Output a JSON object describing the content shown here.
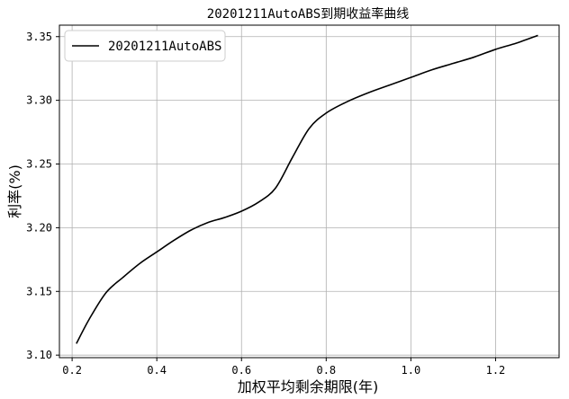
{
  "chart_data": {
    "type": "line",
    "title": "20201211AutoABS到期收益率曲线",
    "xlabel": "加权平均剩余期限(年)",
    "ylabel": "利率(%)",
    "xlim": [
      0.17,
      1.35
    ],
    "ylim": [
      3.098,
      3.359
    ],
    "x_ticks": [
      0.2,
      0.4,
      0.6,
      0.8,
      1.0,
      1.2
    ],
    "x_tick_labels": [
      "0.2",
      "0.4",
      "0.6",
      "0.8",
      "1.0",
      "1.2"
    ],
    "y_ticks": [
      3.1,
      3.15,
      3.2,
      3.25,
      3.3,
      3.35
    ],
    "y_tick_labels": [
      "3.10",
      "3.15",
      "3.20",
      "3.25",
      "3.30",
      "3.35"
    ],
    "grid": true,
    "legend_position": "top-left",
    "series": [
      {
        "name": "20201211AutoABS",
        "color": "#000000",
        "x": [
          0.21,
          0.24,
          0.28,
          0.32,
          0.36,
          0.4,
          0.44,
          0.48,
          0.52,
          0.56,
          0.6,
          0.64,
          0.68,
          0.72,
          0.76,
          0.8,
          0.85,
          0.9,
          0.95,
          1.0,
          1.05,
          1.1,
          1.15,
          1.2,
          1.25,
          1.3
        ],
        "y": [
          3.109,
          3.128,
          3.149,
          3.161,
          3.172,
          3.181,
          3.19,
          3.198,
          3.204,
          3.208,
          3.213,
          3.22,
          3.231,
          3.255,
          3.278,
          3.29,
          3.299,
          3.306,
          3.312,
          3.318,
          3.324,
          3.329,
          3.334,
          3.34,
          3.345,
          3.351
        ]
      }
    ]
  }
}
